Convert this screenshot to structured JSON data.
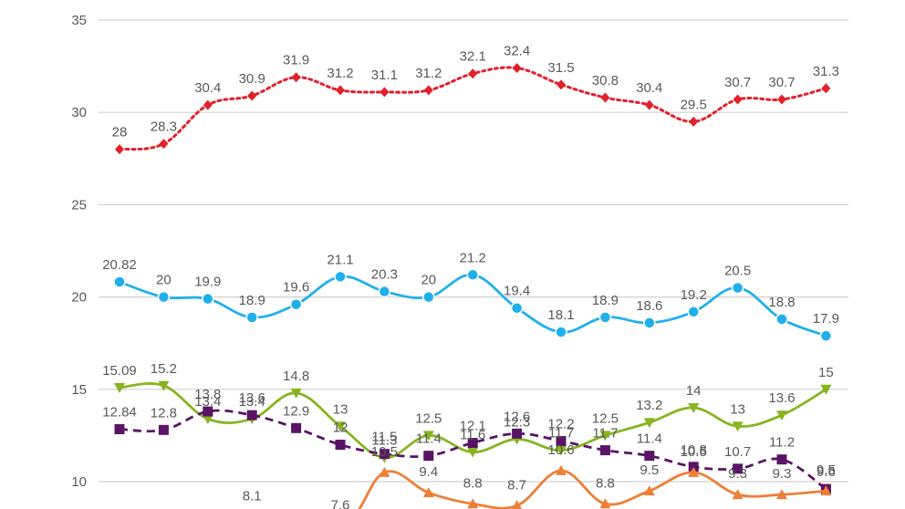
{
  "chart_data": {
    "type": "line",
    "title": "",
    "xlabel": "",
    "ylabel": "",
    "ylim": [
      10,
      35
    ],
    "yticks": [
      10,
      15,
      20,
      25,
      30,
      35
    ],
    "grid": true,
    "categories_count": 17,
    "series": [
      {
        "color": "#e2202a",
        "line_style": "dotted",
        "marker": "diamond",
        "values": [
          28,
          28.3,
          30.4,
          30.9,
          31.9,
          31.2,
          31.1,
          31.2,
          32.1,
          32.4,
          31.5,
          30.8,
          30.4,
          29.5,
          30.7,
          30.7,
          31.3
        ],
        "labels": [
          "28",
          "28.3",
          "30.4",
          "30.9",
          "31.9",
          "31.2",
          "31.1",
          "31.2",
          "32.1",
          "32.4",
          "31.5",
          "30.8",
          "30.4",
          "29.5",
          "30.7",
          "30.7",
          "31.3"
        ]
      },
      {
        "color": "#1fb0ec",
        "line_style": "solid",
        "marker": "circle",
        "values": [
          20.82,
          20,
          19.9,
          18.9,
          19.6,
          21.1,
          20.3,
          20,
          21.2,
          19.4,
          18.1,
          18.9,
          18.6,
          19.2,
          20.5,
          18.8,
          17.9
        ],
        "labels": [
          "20.82",
          "20",
          "19.9",
          "18.9",
          "19.6",
          "21.1",
          "20.3",
          "20",
          "21.2",
          "19.4",
          "18.1",
          "18.9",
          "18.6",
          "19.2",
          "20.5",
          "18.8",
          "17.9"
        ]
      },
      {
        "color": "#86b521",
        "line_style": "solid",
        "marker": "triangle-down",
        "values": [
          15.09,
          15.2,
          13.4,
          13.4,
          14.8,
          13,
          11.3,
          12.5,
          11.6,
          12.3,
          11.7,
          12.5,
          13.2,
          14,
          13,
          13.6,
          15
        ],
        "labels": [
          "15.09",
          "15.2",
          "13.4",
          "13.4",
          "14.8",
          "13",
          "11.3",
          "12.5",
          "11.6",
          "12.3",
          "11.7",
          "12.5",
          "13.2",
          "14",
          "13",
          "13.6",
          "15"
        ]
      },
      {
        "color": "#5a1466",
        "line_style": "dashed",
        "marker": "square",
        "values": [
          12.84,
          12.8,
          13.8,
          13.6,
          12.9,
          12,
          11.5,
          11.4,
          12.1,
          12.6,
          12.2,
          11.7,
          11.4,
          10.8,
          10.7,
          11.2,
          9.6
        ],
        "labels": [
          "12.84",
          "12.8",
          "13.8",
          "13.6",
          "12.9",
          "12",
          "11.5",
          "11.4",
          "12.1",
          "12.6",
          "12.2",
          "11.7",
          "11.4",
          "10.8",
          "10.7",
          "11.2",
          "9.6"
        ]
      },
      {
        "color": "#ee7f37",
        "line_style": "solid",
        "marker": "triangle-up",
        "values": [
          null,
          null,
          null,
          8.1,
          null,
          7.6,
          10.5,
          9.4,
          8.8,
          8.7,
          10.6,
          8.8,
          9.5,
          10.5,
          9.3,
          9.3,
          9.5
        ],
        "labels": [
          "",
          "",
          "",
          "8.1",
          "",
          "7.6",
          "10.5",
          "9.4",
          "8.8",
          "8.7",
          "10.6",
          "8.8",
          "9.5",
          "10.5",
          "9.3",
          "9.3",
          "9.5"
        ]
      }
    ]
  }
}
